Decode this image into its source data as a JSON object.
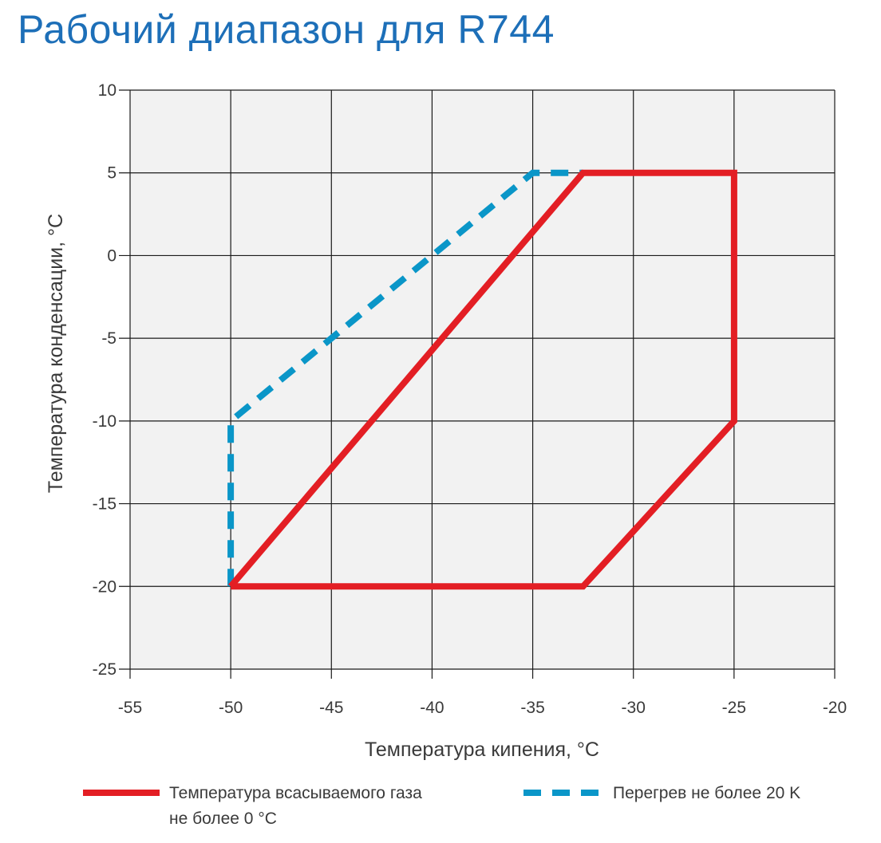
{
  "title": "Рабочий диапазон для R744",
  "chart_data": {
    "type": "line",
    "xlabel": "Температура кипения, °C",
    "ylabel": "Температура конденсации, °C",
    "xlim": [
      -55,
      -20
    ],
    "ylim": [
      -25,
      10
    ],
    "x_ticks": [
      "-55",
      "-50",
      "-45",
      "-40",
      "-35",
      "-30",
      "-25",
      "-20"
    ],
    "y_ticks": [
      "10",
      "5",
      "0",
      "-5",
      "-10",
      "-15",
      "-20",
      "-25"
    ],
    "grid": true,
    "legend_position": "bottom",
    "series": [
      {
        "name": "Температура всасываемого газа не более 0 °C",
        "color": "#e31e24",
        "style": "solid",
        "closed": true,
        "points": [
          [
            -50,
            -20
          ],
          [
            -32.5,
            5
          ],
          [
            -25,
            5
          ],
          [
            -25,
            -10
          ],
          [
            -32.5,
            -20
          ],
          [
            -50,
            -20
          ]
        ]
      },
      {
        "name": "Перегрев не более 20 K",
        "color": "#0a96c8",
        "style": "dashed",
        "closed": false,
        "points": [
          [
            -50,
            -20
          ],
          [
            -50,
            -10
          ],
          [
            -35,
            5
          ],
          [
            -32.5,
            5
          ]
        ]
      }
    ]
  },
  "legend": {
    "red_line1": "Температура всасываемого газа",
    "red_line2": "не более 0 °C",
    "blue": "Перегрев не более 20 K"
  }
}
